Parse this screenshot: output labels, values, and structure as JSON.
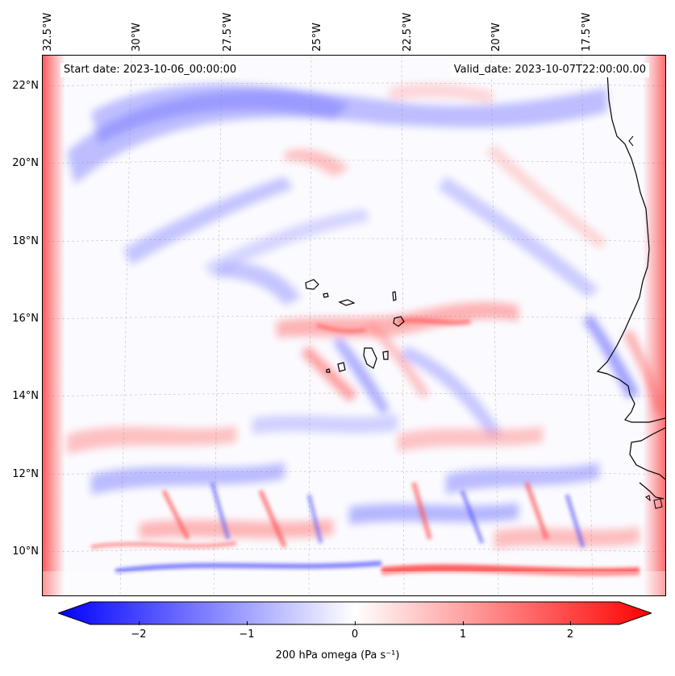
{
  "header": {
    "lon_labels": [
      "32.5°W",
      "30°W",
      "27.5°W",
      "25°W",
      "22.5°W",
      "20°W",
      "17.5°W"
    ],
    "lat_labels": [
      "22°N",
      "20°N",
      "18°N",
      "16°N",
      "14°N",
      "12°N",
      "10°N"
    ]
  },
  "map": {
    "start_date": "Start date: 2023-10-06_00:00:00",
    "valid_date": "Valid_date: 2023-10-07T22:00:00.00",
    "field": "200 hPa omega",
    "extent_lon": [
      -32.7,
      -16.0
    ],
    "extent_lat": [
      8.9,
      22.8
    ],
    "islands": [
      "Santo Antão",
      "São Vicente",
      "São Nicolau",
      "Sal",
      "Boa Vista",
      "Maio",
      "Santiago",
      "Fogo",
      "Brava"
    ],
    "colors": {
      "positive": "#ff0000",
      "negative": "#0000ff",
      "neutral": "#ffffff",
      "coastline": "#000000"
    }
  },
  "colorbar": {
    "min": -2.7,
    "max": 2.7,
    "ticks": [
      "−2",
      "−1",
      "0",
      "1",
      "2"
    ],
    "tick_values": [
      -2,
      -1,
      0,
      1,
      2
    ],
    "label": "200 hPa omega (Pa s⁻¹)",
    "extend": "both"
  }
}
